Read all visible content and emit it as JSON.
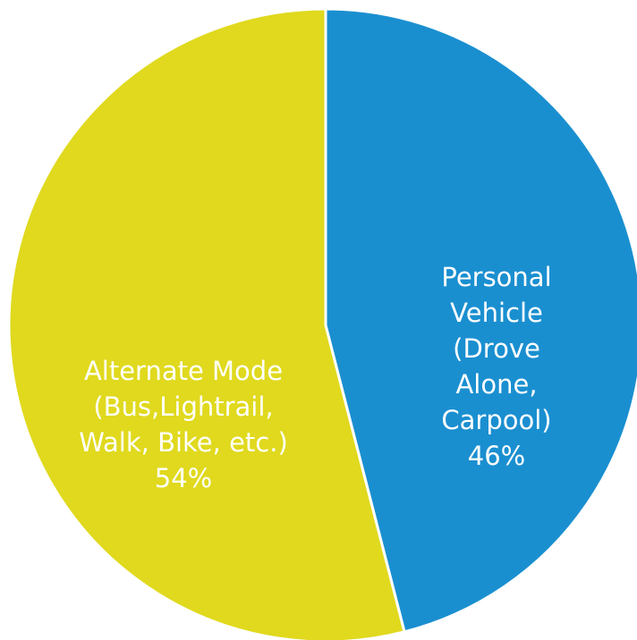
{
  "chart_data": {
    "type": "pie",
    "categories": [
      "Personal Vehicle\n(Drove Alone,\nCarpool)",
      "Alternate Mode\n(Bus,Lightrail,\nWalk, Bike, etc.)"
    ],
    "values": [
      46,
      54
    ],
    "value_labels": [
      "46%",
      "54%"
    ],
    "colors": [
      "#1a8fd0",
      "#e0d91e"
    ]
  }
}
